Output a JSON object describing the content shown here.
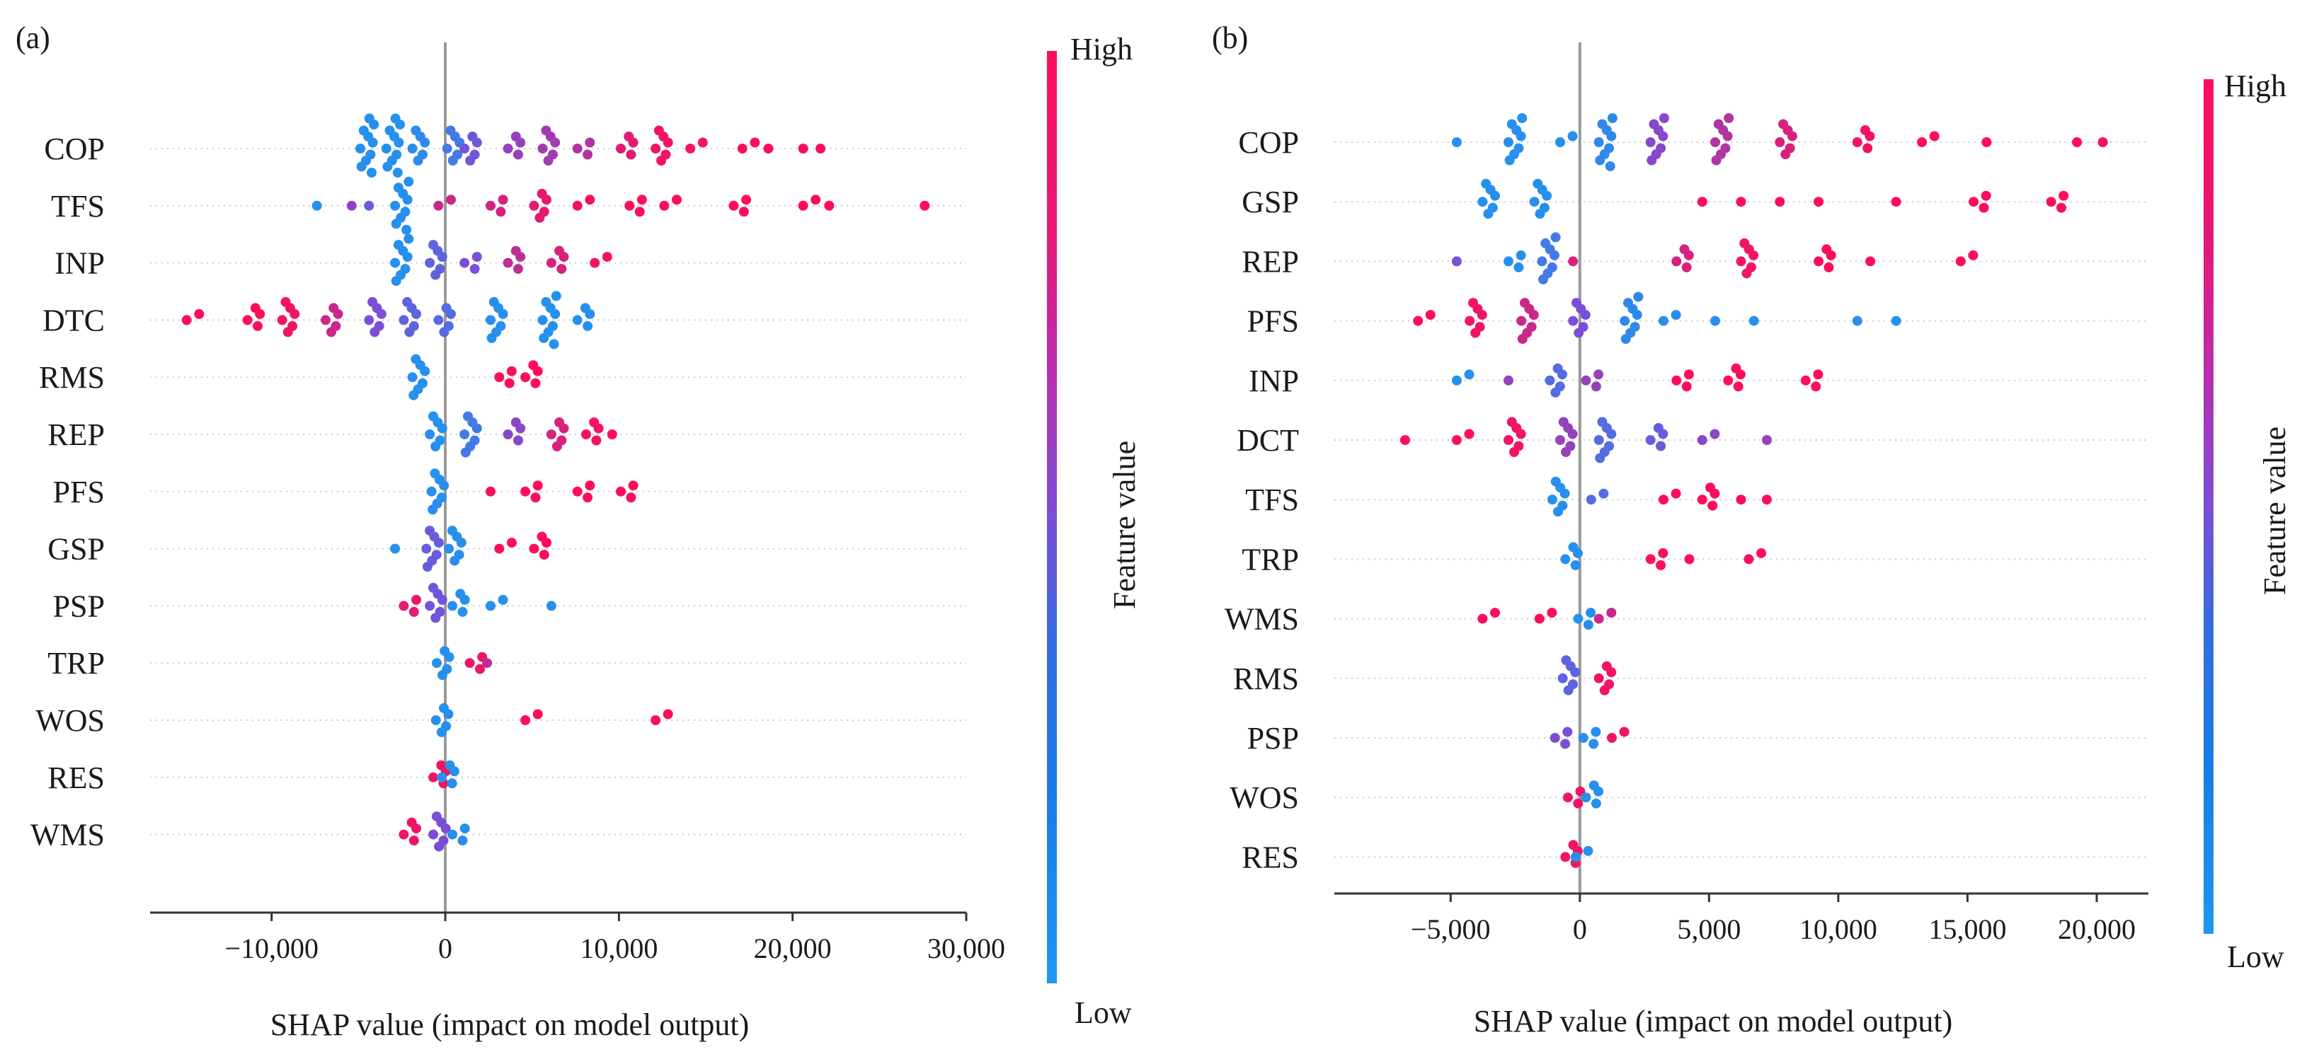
{
  "panels": {
    "a": {
      "label": "(a)"
    },
    "b": {
      "label": "(b)"
    }
  },
  "colorbar": {
    "high": "High",
    "low": "Low",
    "title": "Feature value"
  },
  "colors": {
    "low": "#1e96f0",
    "mid": "#7a4fd6",
    "high": "#ff0d57",
    "axis": "#333333",
    "zero_line": "#999999",
    "grid": "#cccccc"
  },
  "chart_data": [
    {
      "panel": "a",
      "type": "scatter",
      "subtype": "shap-beeswarm",
      "xlabel": "SHAP value (impact on model output)",
      "xlim": [
        -17000,
        30000
      ],
      "xticks": [
        -10000,
        0,
        10000,
        20000,
        30000
      ],
      "xtick_labels": [
        "−10,000",
        "0",
        "10,000",
        "20,000",
        "30,000"
      ],
      "features": [
        {
          "name": "COP",
          "points": [
            {
              "x": -4500,
              "v": 0.05,
              "n": 10
            },
            {
              "x": -3000,
              "v": 0.05,
              "n": 10
            },
            {
              "x": -1500,
              "v": 0.08,
              "n": 6
            },
            {
              "x": 500,
              "v": 0.2,
              "n": 6
            },
            {
              "x": 1500,
              "v": 0.45,
              "n": 5
            },
            {
              "x": 4000,
              "v": 0.6,
              "n": 4
            },
            {
              "x": 6000,
              "v": 0.65,
              "n": 6
            },
            {
              "x": 8000,
              "v": 0.7,
              "n": 3
            },
            {
              "x": 10500,
              "v": 0.9,
              "n": 4
            },
            {
              "x": 12500,
              "v": 0.95,
              "n": 6
            },
            {
              "x": 14500,
              "v": 0.95,
              "n": 2
            },
            {
              "x": 17500,
              "v": 1,
              "n": 2
            },
            {
              "x": 19000,
              "v": 1,
              "n": 1
            },
            {
              "x": 21000,
              "v": 1,
              "n": 1
            },
            {
              "x": 22000,
              "v": 1,
              "n": 1
            }
          ]
        },
        {
          "name": "TFS",
          "points": [
            {
              "x": -7000,
              "v": 0.05,
              "n": 1
            },
            {
              "x": -5000,
              "v": 0.6,
              "n": 1
            },
            {
              "x": -4000,
              "v": 0.4,
              "n": 1
            },
            {
              "x": -2500,
              "v": 0.05,
              "n": 9
            },
            {
              "x": 0,
              "v": 0.8,
              "n": 2
            },
            {
              "x": 3000,
              "v": 0.85,
              "n": 3
            },
            {
              "x": 5500,
              "v": 0.9,
              "n": 5
            },
            {
              "x": 8000,
              "v": 0.95,
              "n": 2
            },
            {
              "x": 11000,
              "v": 1,
              "n": 3
            },
            {
              "x": 13000,
              "v": 1,
              "n": 2
            },
            {
              "x": 17000,
              "v": 1,
              "n": 3
            },
            {
              "x": 21000,
              "v": 1,
              "n": 2
            },
            {
              "x": 22500,
              "v": 1,
              "n": 1
            },
            {
              "x": 28000,
              "v": 1,
              "n": 1
            }
          ]
        },
        {
          "name": "INP",
          "points": [
            {
              "x": -2500,
              "v": 0.05,
              "n": 8
            },
            {
              "x": -500,
              "v": 0.35,
              "n": 6
            },
            {
              "x": 1500,
              "v": 0.5,
              "n": 3
            },
            {
              "x": 4000,
              "v": 0.75,
              "n": 4
            },
            {
              "x": 6500,
              "v": 0.85,
              "n": 4
            },
            {
              "x": 9000,
              "v": 0.95,
              "n": 2
            }
          ]
        },
        {
          "name": "DTC",
          "points": [
            {
              "x": -14500,
              "v": 1,
              "n": 2
            },
            {
              "x": -11000,
              "v": 1,
              "n": 4
            },
            {
              "x": -9000,
              "v": 0.95,
              "n": 6
            },
            {
              "x": -6500,
              "v": 0.8,
              "n": 5
            },
            {
              "x": -4000,
              "v": 0.5,
              "n": 6
            },
            {
              "x": -2000,
              "v": 0.35,
              "n": 6
            },
            {
              "x": 0,
              "v": 0.3,
              "n": 5
            },
            {
              "x": 3000,
              "v": 0.05,
              "n": 7
            },
            {
              "x": 6000,
              "v": 0.05,
              "n": 9
            },
            {
              "x": 8000,
              "v": 0.05,
              "n": 4
            }
          ]
        },
        {
          "name": "RMS",
          "points": [
            {
              "x": -1500,
              "v": 0.05,
              "n": 7
            },
            {
              "x": 3500,
              "v": 1,
              "n": 3
            },
            {
              "x": 5000,
              "v": 1,
              "n": 4
            }
          ]
        },
        {
          "name": "REP",
          "points": [
            {
              "x": -500,
              "v": 0.05,
              "n": 6
            },
            {
              "x": 1500,
              "v": 0.2,
              "n": 7
            },
            {
              "x": 4000,
              "v": 0.55,
              "n": 4
            },
            {
              "x": 6500,
              "v": 0.85,
              "n": 5
            },
            {
              "x": 8500,
              "v": 0.95,
              "n": 4
            },
            {
              "x": 10000,
              "v": 1,
              "n": 1
            }
          ]
        },
        {
          "name": "PFS",
          "points": [
            {
              "x": -400,
              "v": 0.05,
              "n": 7
            },
            {
              "x": 3000,
              "v": 1,
              "n": 1
            },
            {
              "x": 5000,
              "v": 1,
              "n": 3
            },
            {
              "x": 8000,
              "v": 1,
              "n": 3
            },
            {
              "x": 10500,
              "v": 1,
              "n": 3
            }
          ]
        },
        {
          "name": "GSP",
          "points": [
            {
              "x": -2500,
              "v": 0.05,
              "n": 1
            },
            {
              "x": -700,
              "v": 0.4,
              "n": 7
            },
            {
              "x": 600,
              "v": 0.05,
              "n": 6
            },
            {
              "x": 3500,
              "v": 1,
              "n": 2
            },
            {
              "x": 5500,
              "v": 1,
              "n": 4
            }
          ]
        },
        {
          "name": "PSP",
          "points": [
            {
              "x": -2000,
              "v": 0.9,
              "n": 3
            },
            {
              "x": -500,
              "v": 0.45,
              "n": 6
            },
            {
              "x": 800,
              "v": 0.05,
              "n": 4
            },
            {
              "x": 3000,
              "v": 0.05,
              "n": 2
            },
            {
              "x": 6500,
              "v": 0.05,
              "n": 1
            }
          ]
        },
        {
          "name": "TRP",
          "points": [
            {
              "x": -100,
              "v": 0.05,
              "n": 5
            },
            {
              "x": 1800,
              "v": 0.95,
              "n": 3
            },
            {
              "x": 2800,
              "v": 0.75,
              "n": 1
            }
          ]
        },
        {
          "name": "WOS",
          "points": [
            {
              "x": -150,
              "v": 0.05,
              "n": 5
            },
            {
              "x": 5000,
              "v": 1,
              "n": 2
            },
            {
              "x": 12500,
              "v": 1,
              "n": 2
            }
          ]
        },
        {
          "name": "RES",
          "points": [
            {
              "x": -300,
              "v": 0.95,
              "n": 4
            },
            {
              "x": 200,
              "v": 0.05,
              "n": 4
            }
          ]
        },
        {
          "name": "WMS",
          "points": [
            {
              "x": -2000,
              "v": 0.95,
              "n": 4
            },
            {
              "x": -300,
              "v": 0.5,
              "n": 6
            },
            {
              "x": 800,
              "v": 0.05,
              "n": 3
            }
          ]
        }
      ]
    },
    {
      "panel": "b",
      "type": "scatter",
      "subtype": "shap-beeswarm",
      "xlabel": "SHAP value (impact on model output)",
      "xlim": [
        -9500,
        22000
      ],
      "xticks": [
        -5000,
        0,
        5000,
        10000,
        15000,
        20000
      ],
      "xtick_labels": [
        "−5,000",
        "0",
        "5,000",
        "10,000",
        "15,000",
        "20,000"
      ],
      "features": [
        {
          "name": "COP",
          "points": [
            {
              "x": -4500,
              "v": 0.05,
              "n": 1
            },
            {
              "x": -2500,
              "v": 0.05,
              "n": 8
            },
            {
              "x": -500,
              "v": 0.05,
              "n": 2
            },
            {
              "x": 1000,
              "v": 0.1,
              "n": 9
            },
            {
              "x": 3000,
              "v": 0.55,
              "n": 8
            },
            {
              "x": 5500,
              "v": 0.7,
              "n": 8
            },
            {
              "x": 8000,
              "v": 0.85,
              "n": 6
            },
            {
              "x": 11000,
              "v": 0.95,
              "n": 4
            },
            {
              "x": 13500,
              "v": 1,
              "n": 2
            },
            {
              "x": 16000,
              "v": 1,
              "n": 1
            },
            {
              "x": 19500,
              "v": 1,
              "n": 1
            },
            {
              "x": 20500,
              "v": 1,
              "n": 1
            }
          ]
        },
        {
          "name": "GSP",
          "points": [
            {
              "x": -3500,
              "v": 0.05,
              "n": 6
            },
            {
              "x": -1500,
              "v": 0.05,
              "n": 6
            },
            {
              "x": 5000,
              "v": 1,
              "n": 1
            },
            {
              "x": 6500,
              "v": 1,
              "n": 1
            },
            {
              "x": 8000,
              "v": 1,
              "n": 1
            },
            {
              "x": 9500,
              "v": 1,
              "n": 1
            },
            {
              "x": 12500,
              "v": 1,
              "n": 1
            },
            {
              "x": 15500,
              "v": 1,
              "n": 3
            },
            {
              "x": 18500,
              "v": 1,
              "n": 3
            }
          ]
        },
        {
          "name": "REP",
          "points": [
            {
              "x": -4500,
              "v": 0.5,
              "n": 1
            },
            {
              "x": -2500,
              "v": 0.05,
              "n": 3
            },
            {
              "x": -1200,
              "v": 0.2,
              "n": 8
            },
            {
              "x": 0,
              "v": 0.85,
              "n": 1
            },
            {
              "x": 4000,
              "v": 0.85,
              "n": 4
            },
            {
              "x": 6500,
              "v": 0.95,
              "n": 6
            },
            {
              "x": 9500,
              "v": 1,
              "n": 4
            },
            {
              "x": 11500,
              "v": 1,
              "n": 1
            },
            {
              "x": 15000,
              "v": 1,
              "n": 2
            }
          ]
        },
        {
          "name": "PFS",
          "points": [
            {
              "x": -6000,
              "v": 1,
              "n": 2
            },
            {
              "x": -4000,
              "v": 0.95,
              "n": 6
            },
            {
              "x": -2000,
              "v": 0.8,
              "n": 7
            },
            {
              "x": 0,
              "v": 0.5,
              "n": 6
            },
            {
              "x": 2000,
              "v": 0.1,
              "n": 8
            },
            {
              "x": 3500,
              "v": 0.05,
              "n": 2
            },
            {
              "x": 5500,
              "v": 0.05,
              "n": 1
            },
            {
              "x": 7000,
              "v": 0.05,
              "n": 1
            },
            {
              "x": 11000,
              "v": 0.05,
              "n": 1
            },
            {
              "x": 12500,
              "v": 0.05,
              "n": 1
            }
          ]
        },
        {
          "name": "INP",
          "points": [
            {
              "x": -4500,
              "v": 0.05,
              "n": 2
            },
            {
              "x": -2500,
              "v": 0.6,
              "n": 1
            },
            {
              "x": -900,
              "v": 0.3,
              "n": 5
            },
            {
              "x": 500,
              "v": 0.6,
              "n": 3
            },
            {
              "x": 4000,
              "v": 1,
              "n": 3
            },
            {
              "x": 6000,
              "v": 1,
              "n": 4
            },
            {
              "x": 9000,
              "v": 1,
              "n": 3
            }
          ]
        },
        {
          "name": "DCT",
          "points": [
            {
              "x": -6500,
              "v": 1,
              "n": 1
            },
            {
              "x": -4500,
              "v": 1,
              "n": 2
            },
            {
              "x": -2500,
              "v": 0.95,
              "n": 6
            },
            {
              "x": -500,
              "v": 0.6,
              "n": 6
            },
            {
              "x": 1000,
              "v": 0.3,
              "n": 7
            },
            {
              "x": 3000,
              "v": 0.4,
              "n": 4
            },
            {
              "x": 5000,
              "v": 0.55,
              "n": 2
            },
            {
              "x": 7500,
              "v": 0.6,
              "n": 1
            }
          ]
        },
        {
          "name": "TFS",
          "points": [
            {
              "x": -800,
              "v": 0.05,
              "n": 6
            },
            {
              "x": 700,
              "v": 0.3,
              "n": 2
            },
            {
              "x": 3500,
              "v": 1,
              "n": 2
            },
            {
              "x": 5000,
              "v": 1,
              "n": 4
            },
            {
              "x": 6500,
              "v": 1,
              "n": 1
            },
            {
              "x": 7500,
              "v": 1,
              "n": 1
            }
          ]
        },
        {
          "name": "TRP",
          "points": [
            {
              "x": -300,
              "v": 0.05,
              "n": 4
            },
            {
              "x": 3000,
              "v": 1,
              "n": 3
            },
            {
              "x": 4500,
              "v": 1,
              "n": 1
            },
            {
              "x": 6800,
              "v": 1,
              "n": 2
            }
          ]
        },
        {
          "name": "WMS",
          "points": [
            {
              "x": -3500,
              "v": 1,
              "n": 2
            },
            {
              "x": -1300,
              "v": 1,
              "n": 2
            },
            {
              "x": 200,
              "v": 0.05,
              "n": 3
            },
            {
              "x": 1000,
              "v": 0.8,
              "n": 2
            }
          ]
        },
        {
          "name": "RMS",
          "points": [
            {
              "x": -400,
              "v": 0.35,
              "n": 6
            },
            {
              "x": 1000,
              "v": 0.95,
              "n": 5
            }
          ]
        },
        {
          "name": "PSP",
          "points": [
            {
              "x": -700,
              "v": 0.5,
              "n": 3
            },
            {
              "x": 400,
              "v": 0.05,
              "n": 3
            },
            {
              "x": 1500,
              "v": 0.95,
              "n": 2
            }
          ]
        },
        {
          "name": "WOS",
          "points": [
            {
              "x": -200,
              "v": 0.95,
              "n": 3
            },
            {
              "x": 500,
              "v": 0.05,
              "n": 4
            }
          ]
        },
        {
          "name": "RES",
          "points": [
            {
              "x": -300,
              "v": 0.95,
              "n": 4
            },
            {
              "x": 100,
              "v": 0.05,
              "n": 2
            }
          ]
        }
      ]
    }
  ]
}
